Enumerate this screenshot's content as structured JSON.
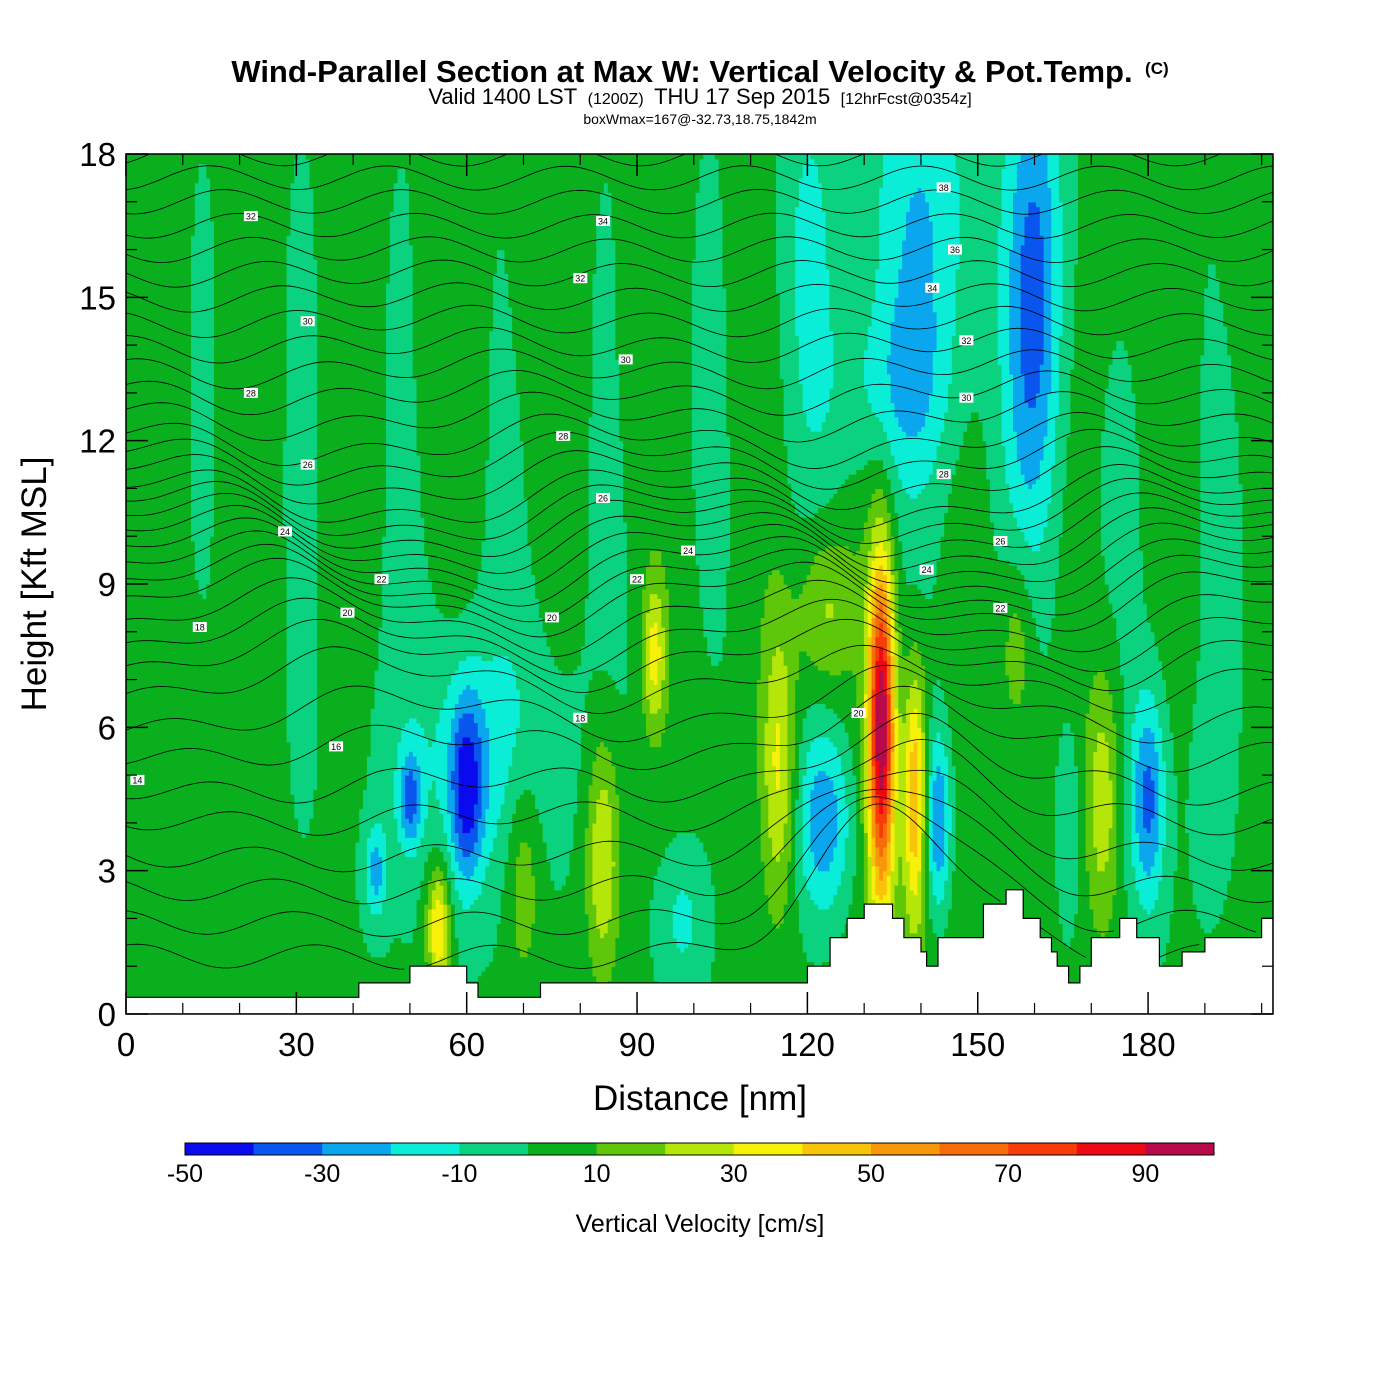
{
  "chart_data": {
    "type": "heatmap",
    "title": "Wind-Parallel Section at Max W: Vertical Velocity & Pot.Temp.",
    "title_mark": "(C)",
    "subtitle": {
      "valid": "Valid 1400 LST",
      "utc": "(1200Z)",
      "date": "THU 17 Sep 2015",
      "forecast": "[12hrFcst@0354z]"
    },
    "subtitle2": "boxWmax=167@-32.73,18.75,1842m",
    "xlabel": "Distance [nm]",
    "ylabel": "Height [Kft MSL]",
    "xlim": [
      0,
      202
    ],
    "ylim": [
      0,
      18
    ],
    "xticks": [
      0,
      30,
      60,
      90,
      120,
      150,
      180
    ],
    "yticks": [
      0,
      3,
      6,
      9,
      12,
      15,
      18
    ],
    "colorbar": {
      "title": "Vertical Velocity [cm/s]",
      "levels": [
        -50,
        -40,
        -30,
        -20,
        -10,
        0,
        10,
        20,
        30,
        40,
        50,
        60,
        70,
        80,
        90,
        100
      ],
      "tick_labels": [
        -50,
        -30,
        -10,
        10,
        30,
        50,
        70,
        90
      ],
      "colors": [
        "#0a0aee",
        "#0a55ee",
        "#0aa6ee",
        "#0aeed8",
        "#0ad27e",
        "#0aaf1e",
        "#5ec70a",
        "#b5e60a",
        "#f7f10a",
        "#f7c40a",
        "#f7980a",
        "#f76c0a",
        "#f73c0a",
        "#ee0a14",
        "#b80a4a"
      ]
    },
    "background_velocity": 1,
    "cells": [
      {
        "x": 140,
        "z": 2.5,
        "rx": 17,
        "rz": 5.0,
        "w": 8
      },
      {
        "x": 10,
        "z": 6.0,
        "rx": 10,
        "rz": 6.0,
        "w": 4
      },
      {
        "x": 100,
        "z": 6.0,
        "rx": 8,
        "rz": 5.0,
        "w": 3
      },
      {
        "x": 5,
        "z": 14.0,
        "rx": 6,
        "rz": 4.0,
        "w": 3
      },
      {
        "x": 20,
        "z": 12.0,
        "rx": 5,
        "rz": 5.0,
        "w": 3
      },
      {
        "x": 35,
        "z": 11.0,
        "rx": 5,
        "rz": 5.0,
        "w": 3
      },
      {
        "x": 52,
        "z": 13.0,
        "rx": 4,
        "rz": 4.0,
        "w": 3
      },
      {
        "x": 70,
        "z": 14.0,
        "rx": 5,
        "rz": 4.0,
        "w": 3
      },
      {
        "x": 88,
        "z": 13.0,
        "rx": 5,
        "rz": 4.0,
        "w": 3
      },
      {
        "x": 110,
        "z": 14.0,
        "rx": 5,
        "rz": 4.0,
        "w": 3
      },
      {
        "x": 175,
        "z": 15.0,
        "rx": 6,
        "rz": 4.0,
        "w": 3
      },
      {
        "x": 195,
        "z": 15.0,
        "rx": 4,
        "rz": 4.0,
        "w": 3
      },
      {
        "x": 140,
        "z": 16.5,
        "rx": 10,
        "rz": 4.0,
        "w": -20
      },
      {
        "x": 160,
        "z": 15.0,
        "rx": 5,
        "rz": 5.0,
        "w": -35
      },
      {
        "x": 120,
        "z": 16.0,
        "rx": 5,
        "rz": 4.0,
        "w": -12
      },
      {
        "x": 135,
        "z": 13.0,
        "rx": 10,
        "rz": 2.0,
        "w": -15
      },
      {
        "x": 63,
        "z": 5.5,
        "rx": 15,
        "rz": 2.6,
        "w": -15
      },
      {
        "x": 60,
        "z": 4.7,
        "rx": 3,
        "rz": 2.0,
        "w": -40
      },
      {
        "x": 50,
        "z": 4.5,
        "rx": 2,
        "rz": 1.0,
        "w": -32
      },
      {
        "x": 44,
        "z": 3.0,
        "rx": 2,
        "rz": 1.0,
        "w": -25
      },
      {
        "x": 55,
        "z": 1.8,
        "rx": 2,
        "rz": 1.3,
        "w": 40
      },
      {
        "x": 70,
        "z": 3.0,
        "rx": 3,
        "rz": 2.4,
        "w": 18
      },
      {
        "x": 84,
        "z": 3.3,
        "rx": 3,
        "rz": 2.6,
        "w": 30
      },
      {
        "x": 93,
        "z": 7.5,
        "rx": 2,
        "rz": 1.5,
        "w": 30
      },
      {
        "x": 98,
        "z": 2.0,
        "rx": 4,
        "rz": 1.5,
        "w": -15
      },
      {
        "x": 115,
        "z": 5.2,
        "rx": 3,
        "rz": 3.0,
        "w": 30
      },
      {
        "x": 123,
        "z": 4.0,
        "rx": 5,
        "rz": 2.0,
        "w": -30
      },
      {
        "x": 123,
        "z": 8.5,
        "rx": 5,
        "rz": 1.8,
        "w": 22
      },
      {
        "x": 133,
        "z": 6.0,
        "rx": 2.3,
        "rz": 3.5,
        "w": 95
      },
      {
        "x": 139,
        "z": 4.6,
        "rx": 2,
        "rz": 2.6,
        "w": 45
      },
      {
        "x": 143,
        "z": 4.0,
        "rx": 2.5,
        "rz": 2.0,
        "w": -38
      },
      {
        "x": 157,
        "z": 7.8,
        "rx": 3,
        "rz": 2.0,
        "w": 18
      },
      {
        "x": 166,
        "z": 4.0,
        "rx": 2,
        "rz": 2.0,
        "w": -12
      },
      {
        "x": 172,
        "z": 4.5,
        "rx": 3,
        "rz": 2.8,
        "w": 26
      },
      {
        "x": 180,
        "z": 4.5,
        "rx": 3,
        "rz": 2.2,
        "w": -35
      },
      {
        "x": 190,
        "z": 4.5,
        "rx": 3,
        "rz": 2.0,
        "w": -5
      }
    ],
    "terrain": [
      {
        "x": 0,
        "z": 0.35
      },
      {
        "x": 41,
        "z": 0.35
      },
      {
        "x": 41,
        "z": 0.65
      },
      {
        "x": 50,
        "z": 0.65
      },
      {
        "x": 50,
        "z": 1.0
      },
      {
        "x": 60,
        "z": 1.0
      },
      {
        "x": 60,
        "z": 0.65
      },
      {
        "x": 62,
        "z": 0.65
      },
      {
        "x": 62,
        "z": 0.35
      },
      {
        "x": 73,
        "z": 0.35
      },
      {
        "x": 73,
        "z": 0.65
      },
      {
        "x": 120,
        "z": 0.65
      },
      {
        "x": 120,
        "z": 1.0
      },
      {
        "x": 124,
        "z": 1.0
      },
      {
        "x": 124,
        "z": 1.6
      },
      {
        "x": 127,
        "z": 1.6
      },
      {
        "x": 127,
        "z": 2.0
      },
      {
        "x": 130,
        "z": 2.0
      },
      {
        "x": 130,
        "z": 2.3
      },
      {
        "x": 135,
        "z": 2.3
      },
      {
        "x": 135,
        "z": 2.0
      },
      {
        "x": 137,
        "z": 2.0
      },
      {
        "x": 137,
        "z": 1.6
      },
      {
        "x": 140,
        "z": 1.6
      },
      {
        "x": 140,
        "z": 1.3
      },
      {
        "x": 141,
        "z": 1.3
      },
      {
        "x": 141,
        "z": 1.0
      },
      {
        "x": 143,
        "z": 1.0
      },
      {
        "x": 143,
        "z": 1.6
      },
      {
        "x": 151,
        "z": 1.6
      },
      {
        "x": 151,
        "z": 2.3
      },
      {
        "x": 155,
        "z": 2.3
      },
      {
        "x": 155,
        "z": 2.6
      },
      {
        "x": 158,
        "z": 2.6
      },
      {
        "x": 158,
        "z": 2.0
      },
      {
        "x": 161,
        "z": 2.0
      },
      {
        "x": 161,
        "z": 1.6
      },
      {
        "x": 163,
        "z": 1.6
      },
      {
        "x": 163,
        "z": 1.3
      },
      {
        "x": 164,
        "z": 1.3
      },
      {
        "x": 164,
        "z": 1.0
      },
      {
        "x": 166,
        "z": 1.0
      },
      {
        "x": 166,
        "z": 0.65
      },
      {
        "x": 168,
        "z": 0.65
      },
      {
        "x": 168,
        "z": 1.0
      },
      {
        "x": 170,
        "z": 1.0
      },
      {
        "x": 170,
        "z": 1.6
      },
      {
        "x": 175,
        "z": 1.6
      },
      {
        "x": 175,
        "z": 2.0
      },
      {
        "x": 178,
        "z": 2.0
      },
      {
        "x": 178,
        "z": 1.6
      },
      {
        "x": 182,
        "z": 1.6
      },
      {
        "x": 182,
        "z": 1.0
      },
      {
        "x": 186,
        "z": 1.0
      },
      {
        "x": 186,
        "z": 1.3
      },
      {
        "x": 190,
        "z": 1.3
      },
      {
        "x": 190,
        "z": 1.6
      },
      {
        "x": 200,
        "z": 1.6
      },
      {
        "x": 200,
        "z": 2.0
      },
      {
        "x": 202,
        "z": 2.0
      }
    ],
    "theta_contours": {
      "base_heights": [
        1.2,
        1.9,
        2.6,
        3.3,
        4.1,
        4.8,
        5.6,
        6.3,
        7.0,
        7.5,
        7.9,
        8.3,
        8.7,
        9.0,
        9.3,
        9.6,
        9.9,
        10.2,
        10.5,
        10.8,
        11.2,
        11.6,
        12.0,
        12.5,
        13.0,
        13.5,
        14.0,
        14.5,
        15.0,
        15.5,
        16.0,
        16.5,
        17.0,
        17.5,
        18.0
      ],
      "labels": [
        {
          "x": 2,
          "z": 4.9,
          "text": "14"
        },
        {
          "x": 37,
          "z": 5.6,
          "text": "16"
        },
        {
          "x": 80,
          "z": 6.2,
          "text": "18"
        },
        {
          "x": 13,
          "z": 8.1,
          "text": "18"
        },
        {
          "x": 39,
          "z": 8.4,
          "text": "20"
        },
        {
          "x": 75,
          "z": 8.3,
          "text": "20"
        },
        {
          "x": 129,
          "z": 6.3,
          "text": "20"
        },
        {
          "x": 45,
          "z": 9.1,
          "text": "22"
        },
        {
          "x": 90,
          "z": 9.1,
          "text": "22"
        },
        {
          "x": 154,
          "z": 8.5,
          "text": "22"
        },
        {
          "x": 28,
          "z": 10.1,
          "text": "24"
        },
        {
          "x": 99,
          "z": 9.7,
          "text": "24"
        },
        {
          "x": 141,
          "z": 9.3,
          "text": "24"
        },
        {
          "x": 32,
          "z": 11.5,
          "text": "26"
        },
        {
          "x": 84,
          "z": 10.8,
          "text": "26"
        },
        {
          "x": 154,
          "z": 9.9,
          "text": "26"
        },
        {
          "x": 22,
          "z": 13.0,
          "text": "28"
        },
        {
          "x": 77,
          "z": 12.1,
          "text": "28"
        },
        {
          "x": 144,
          "z": 11.3,
          "text": "28"
        },
        {
          "x": 32,
          "z": 14.5,
          "text": "30"
        },
        {
          "x": 88,
          "z": 13.7,
          "text": "30"
        },
        {
          "x": 148,
          "z": 12.9,
          "text": "30"
        },
        {
          "x": 22,
          "z": 16.7,
          "text": "32"
        },
        {
          "x": 80,
          "z": 15.4,
          "text": "32"
        },
        {
          "x": 148,
          "z": 14.1,
          "text": "32"
        },
        {
          "x": 84,
          "z": 16.6,
          "text": "34"
        },
        {
          "x": 142,
          "z": 15.2,
          "text": "34"
        },
        {
          "x": 146,
          "z": 16.0,
          "text": "36"
        },
        {
          "x": 144,
          "z": 17.3,
          "text": "38"
        }
      ]
    }
  }
}
